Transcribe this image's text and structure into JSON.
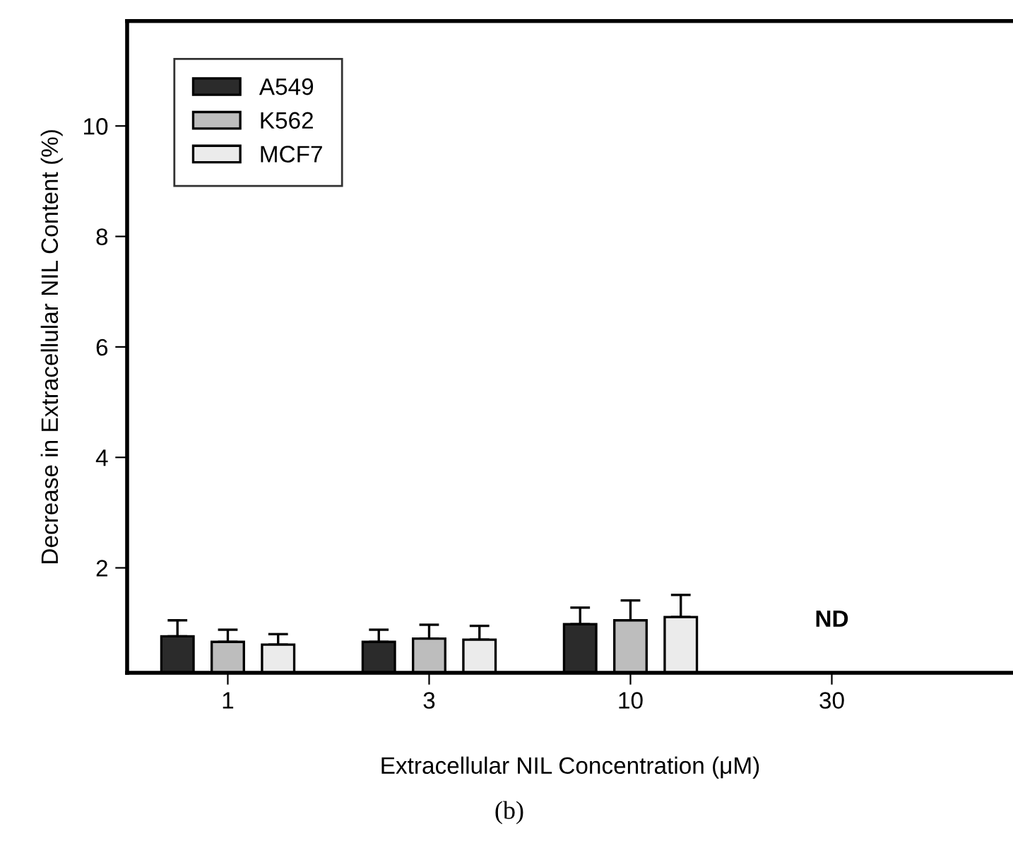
{
  "chart_data": {
    "type": "bar",
    "xlabel": "Extracellular NIL Concentration (μM)",
    "ylabel": "Decrease in Extracellular NIL Content (%)",
    "categories": [
      "1",
      "3",
      "10",
      "30"
    ],
    "series": [
      {
        "name": "A549",
        "color": "#2b2b2b",
        "values": [
          0.76,
          0.66,
          0.98,
          null
        ],
        "errors": [
          [
            0.76,
            1.05
          ],
          [
            0.66,
            0.88
          ],
          [
            0.98,
            1.28
          ],
          null
        ]
      },
      {
        "name": "K562",
        "color": "#bdbdbd",
        "values": [
          0.66,
          0.72,
          1.05,
          null
        ],
        "errors": [
          [
            0.66,
            0.88
          ],
          [
            0.72,
            0.97
          ],
          [
            1.05,
            1.41
          ],
          null
        ]
      },
      {
        "name": "MCF7",
        "color": "#ebebeb",
        "values": [
          0.61,
          0.7,
          1.11,
          null
        ],
        "errors": [
          [
            0.61,
            0.8
          ],
          [
            0.7,
            0.95
          ],
          [
            1.11,
            1.51
          ],
          null
        ]
      }
    ],
    "ylim": [
      0.1,
      11.9
    ],
    "yticks": [
      2,
      4,
      6,
      8,
      10
    ],
    "grid": false,
    "legend": "top left",
    "annotations": [
      "ND",
      "(b)"
    ]
  }
}
